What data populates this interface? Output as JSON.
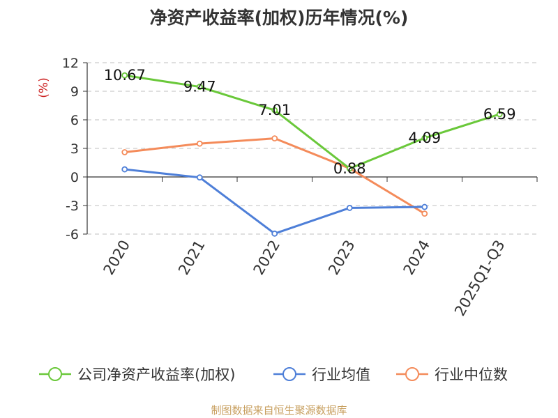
{
  "chart_data": {
    "type": "line",
    "title": "净资产收益率(加权)历年情况(%)",
    "ylabel": "(%)",
    "categories": [
      "2020",
      "2021",
      "2022",
      "2023",
      "2024",
      "2025Q1-Q3"
    ],
    "ylim": [
      -6,
      12
    ],
    "yticks": [
      12,
      9,
      6,
      3,
      0,
      -3,
      -6
    ],
    "ytick_labels": [
      "12",
      "9",
      "6",
      "3",
      "0",
      "-3",
      "-6"
    ],
    "grid": true,
    "legend_position": "bottom",
    "series": [
      {
        "name": "公司净资产收益率(加权)",
        "color": "#6ac83a",
        "values": [
          10.67,
          9.47,
          7.01,
          0.88,
          4.09,
          6.59
        ],
        "data_labels": [
          "10.67",
          "9.47",
          "7.01",
          "0.88",
          "4.09",
          "6.59"
        ]
      },
      {
        "name": "行业均值",
        "color": "#4e7fd8",
        "values": [
          0.8,
          -0.05,
          -5.95,
          -3.25,
          -3.15,
          null
        ]
      },
      {
        "name": "行业中位数",
        "color": "#f48b5a",
        "values": [
          2.6,
          3.5,
          4.05,
          0.9,
          -3.85,
          null
        ]
      }
    ]
  },
  "source": "制图数据来自恒生聚源数据库"
}
